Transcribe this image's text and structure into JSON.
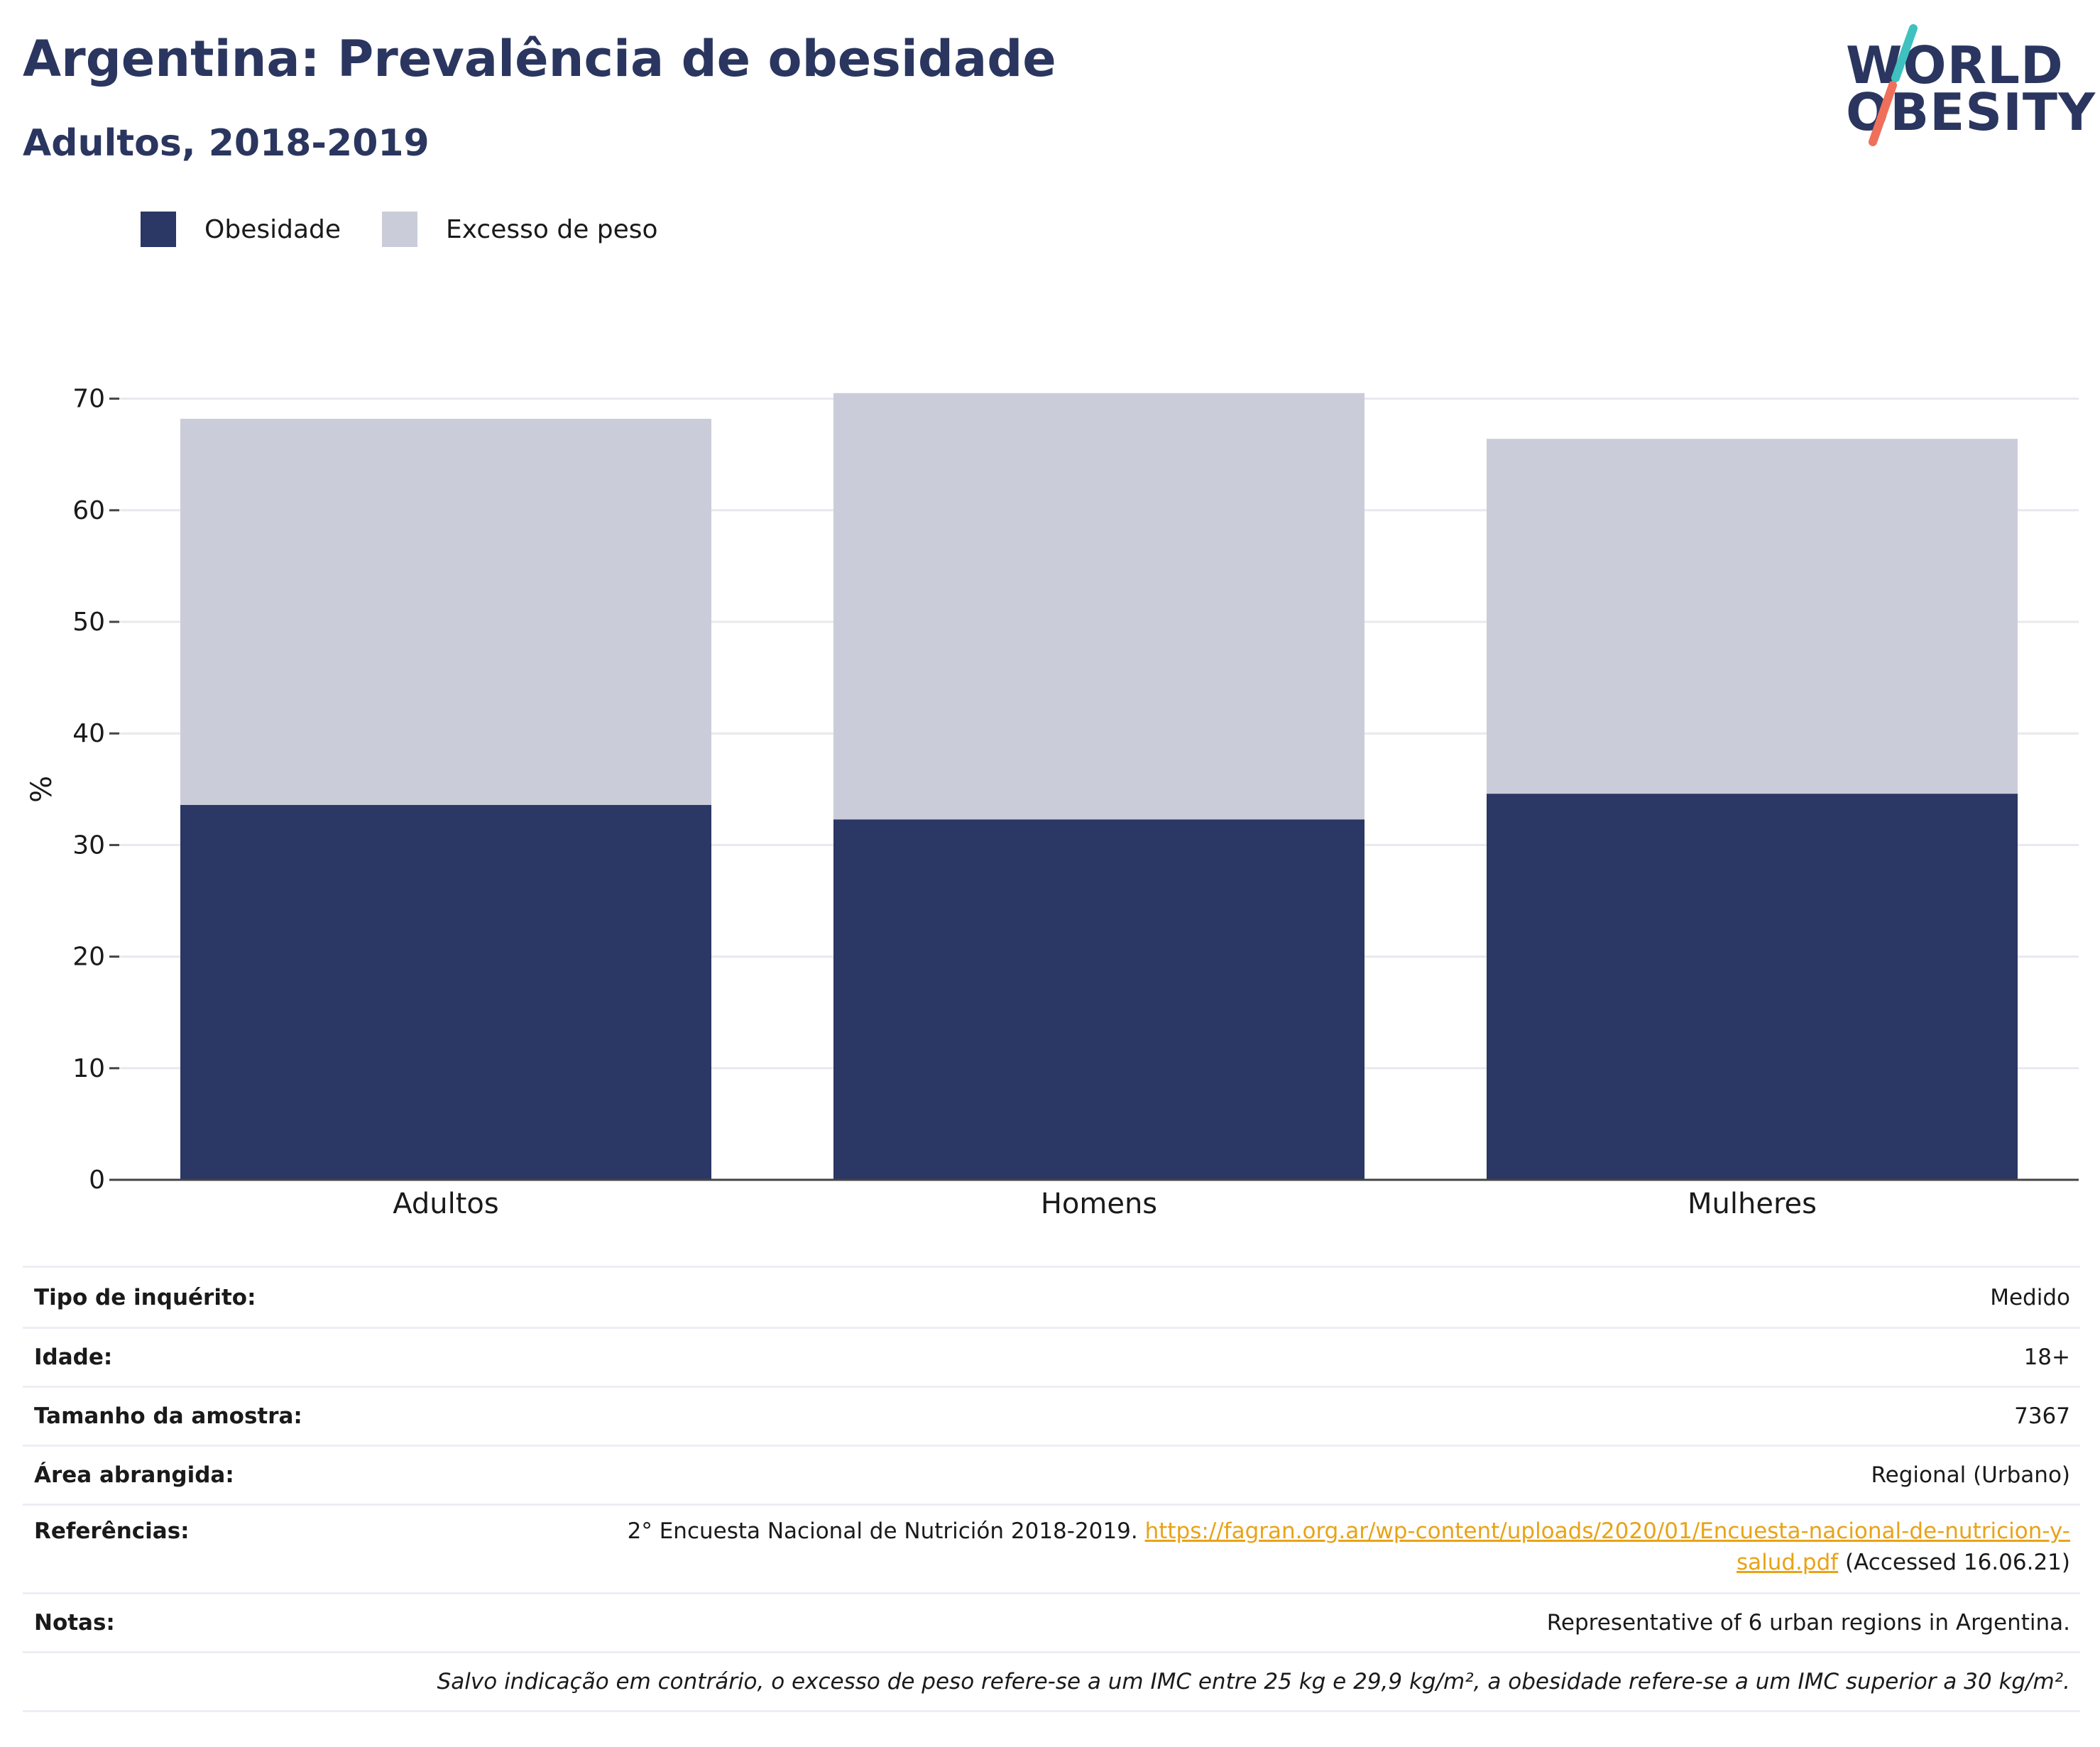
{
  "header": {
    "title": "Argentina: Prevalência de obesidade",
    "subtitle": "Adultos, 2018-2019"
  },
  "logo": {
    "line1": "WORLD",
    "line2": "OBESITY"
  },
  "colors": {
    "obesity": "#2b3764",
    "overweight": "#cacdd9",
    "title": "#2a365f",
    "link": "#e8a317",
    "gridline": "#e8e8ee",
    "logo_slash_top": "#3fc1c0",
    "logo_slash_bottom": "#ef6f5b"
  },
  "chart_data": {
    "type": "bar",
    "stacked": true,
    "categories": [
      "Adultos",
      "Homens",
      "Mulheres"
    ],
    "series": [
      {
        "name": "Obesidade",
        "values": [
          33.6,
          32.3,
          34.6
        ]
      },
      {
        "name": "Excesso de peso",
        "values": [
          34.6,
          38.2,
          31.8
        ]
      }
    ],
    "ylabel": "%",
    "xlabel": "",
    "ylim": [
      0,
      70
    ],
    "yticks": [
      0,
      10,
      20,
      30,
      40,
      50,
      60,
      70
    ],
    "grid": true,
    "legend_position": "top-left"
  },
  "info": {
    "survey_type": {
      "label": "Tipo de inquérito:",
      "value": "Medido"
    },
    "age": {
      "label": "Idade:",
      "value": "18+"
    },
    "sample_size": {
      "label": "Tamanho da amostra:",
      "value": "7367"
    },
    "area": {
      "label": "Área abrangida:",
      "value": "Regional (Urbano)"
    },
    "references": {
      "label": "Referências:",
      "text": "2° Encuesta Nacional de Nutrición 2018-2019. ",
      "link_part1": "https://fagran.org.ar/wp-content/uploads/2020/01/Encuesta-nacional-de-nutricion-y-",
      "link_part2": "salud.pdf",
      "accessed": " (Accessed 16.06.21)"
    },
    "notes": {
      "label": "Notas:",
      "value": "Representative of 6 urban regions in Argentina."
    },
    "footnote": "Salvo indicação em contrário, o excesso de peso refere-se a um IMC entre 25 kg e 29,9 kg/m², a obesidade refere-se a um IMC superior a 30 kg/m²."
  }
}
